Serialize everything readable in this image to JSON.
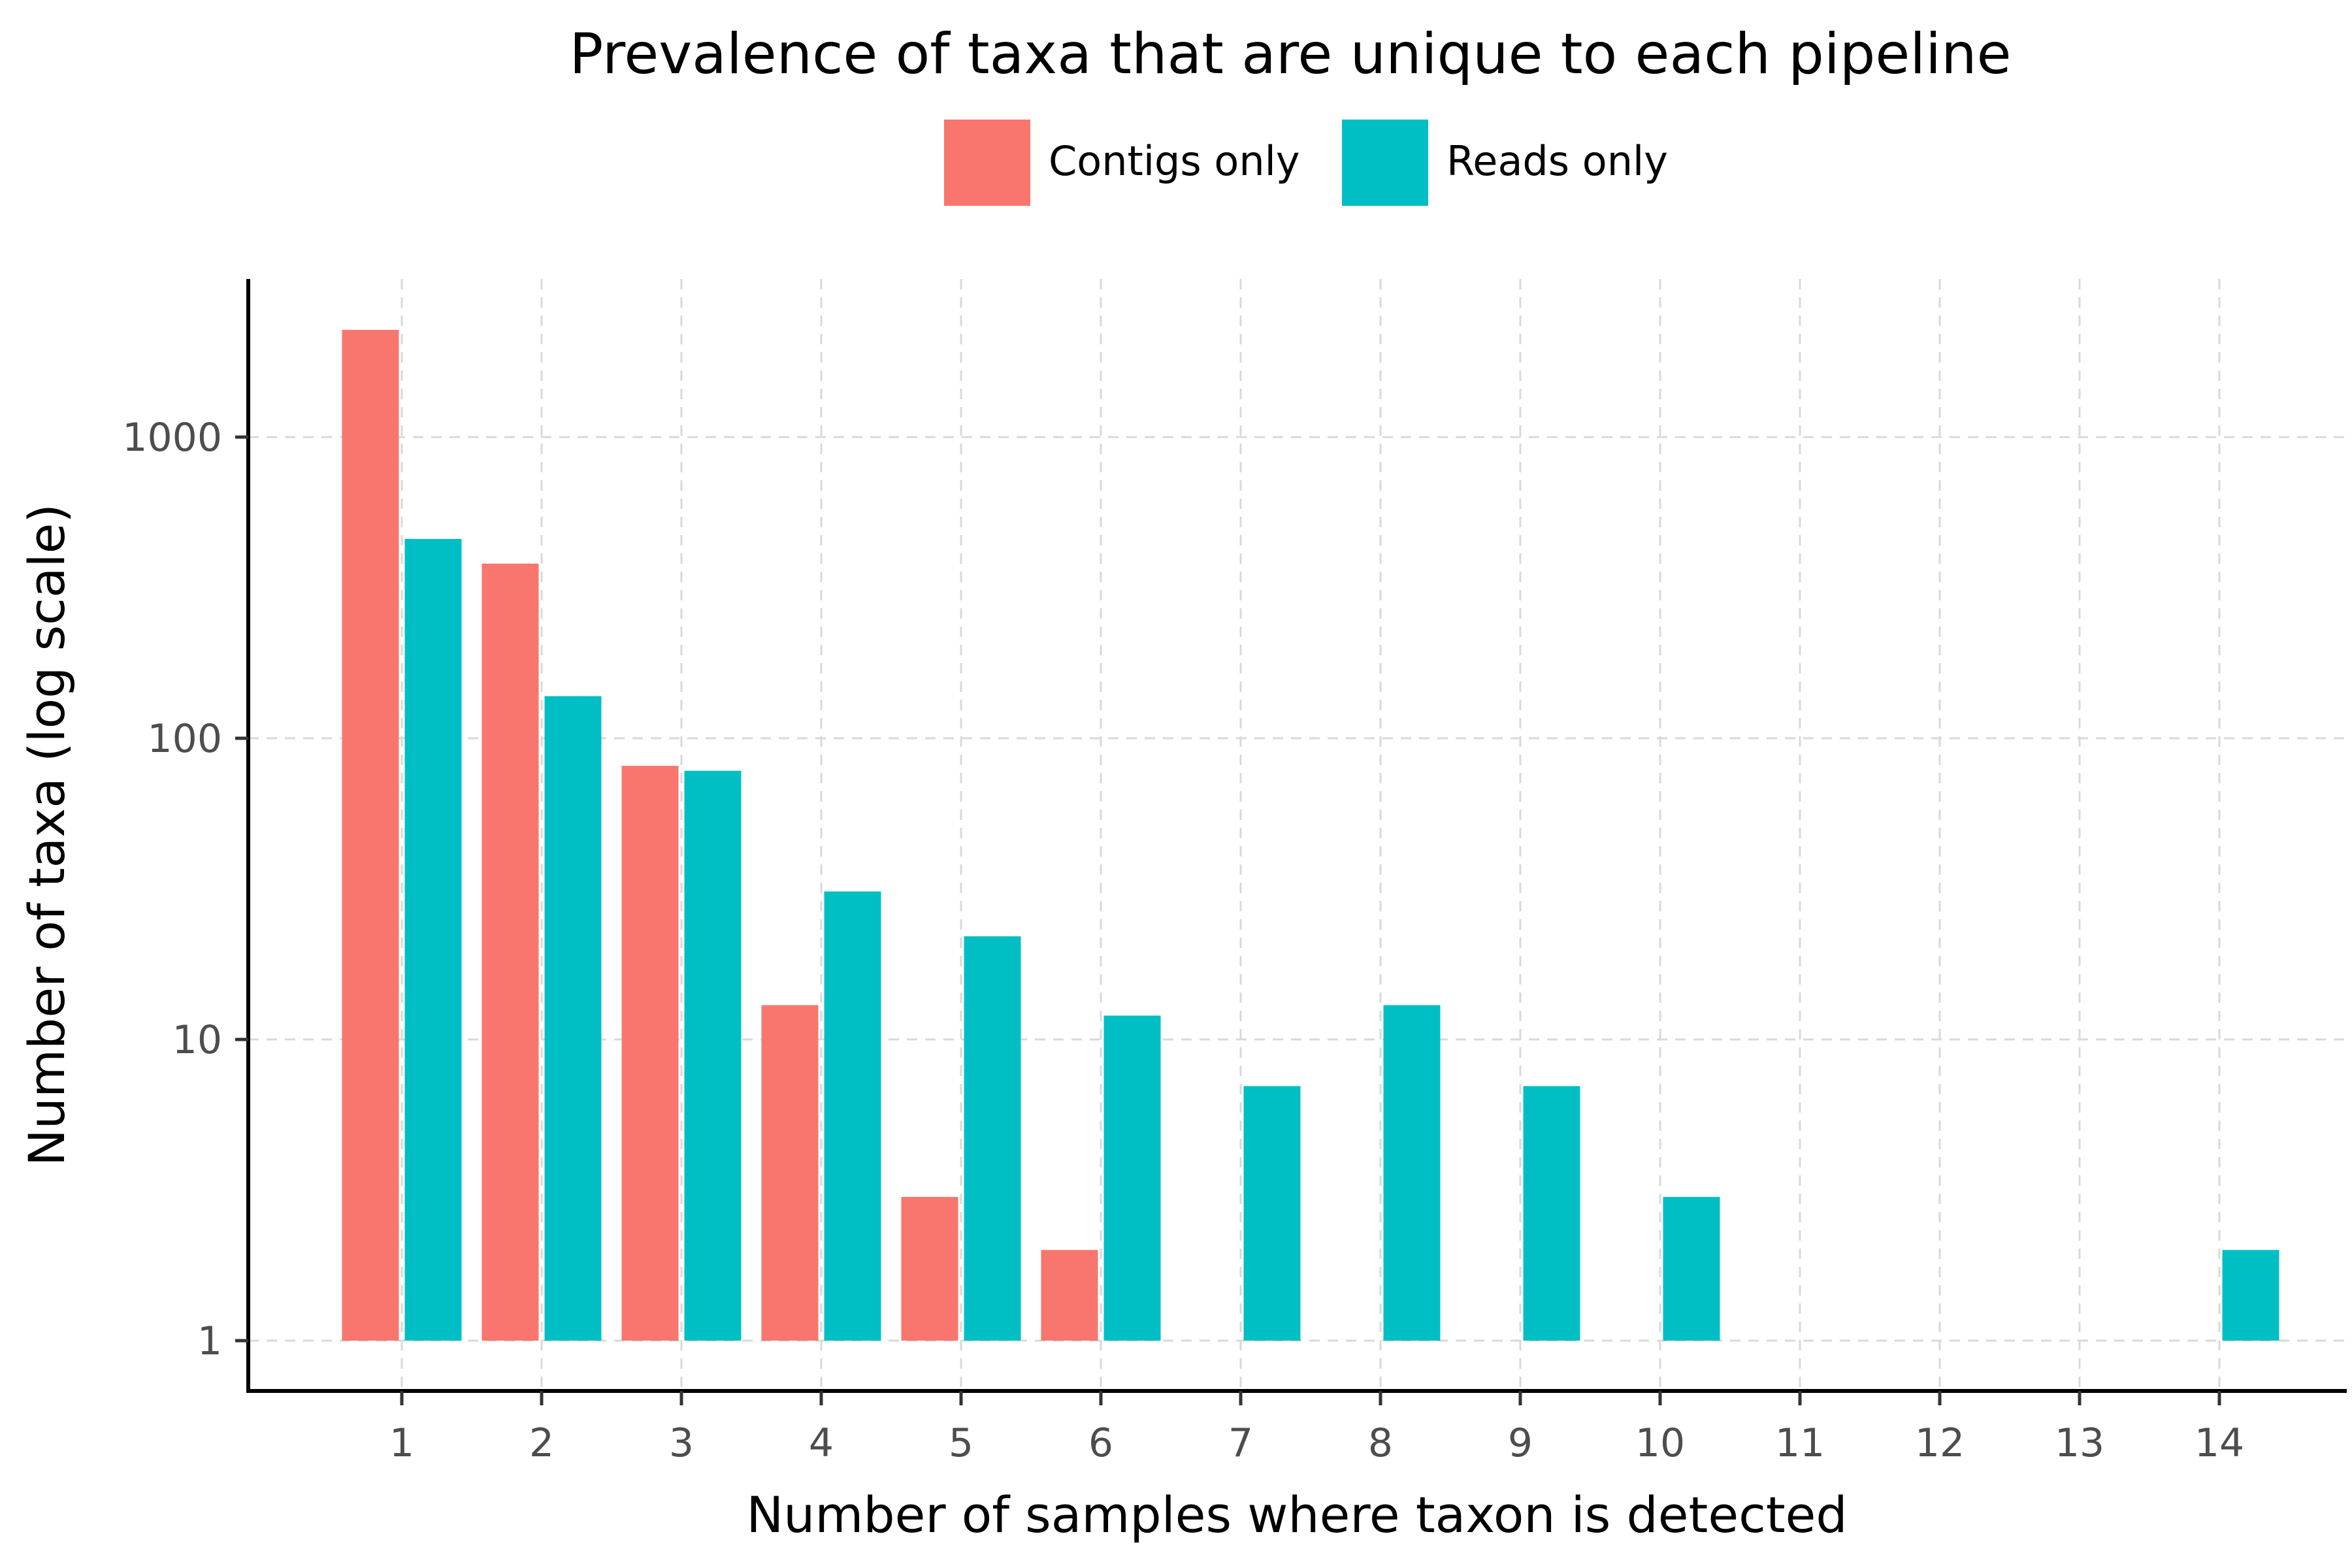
{
  "chart_data": {
    "type": "bar",
    "title": "Prevalence of taxa that are unique to each pipeline",
    "xlabel": "Number of samples where taxon is detected",
    "ylabel": "Number of taxa (log scale)",
    "y_scale": "log10",
    "ylim": [
      0.7,
      3500
    ],
    "y_ticks": [
      1,
      10,
      100,
      1000
    ],
    "y_tick_labels": [
      "1",
      "10",
      "100",
      "1000"
    ],
    "categories": [
      1,
      2,
      3,
      4,
      5,
      6,
      7,
      8,
      9,
      10,
      11,
      12,
      13,
      14
    ],
    "x_tick_labels": [
      "1",
      "2",
      "3",
      "4",
      "5",
      "6",
      "7",
      "8",
      "9",
      "10",
      "11",
      "12",
      "13",
      "14"
    ],
    "grid": true,
    "legend_position": "top",
    "series": [
      {
        "name": "Contigs only",
        "color": "#F8766D",
        "values": [
          2270,
          380,
          81,
          13,
          3,
          2,
          null,
          null,
          null,
          null,
          null,
          null,
          null,
          null
        ]
      },
      {
        "name": "Reads only",
        "color": "#00BFC4",
        "values": [
          459,
          138,
          78,
          31,
          22,
          12,
          7,
          13,
          7,
          3,
          null,
          null,
          null,
          2
        ]
      }
    ]
  }
}
